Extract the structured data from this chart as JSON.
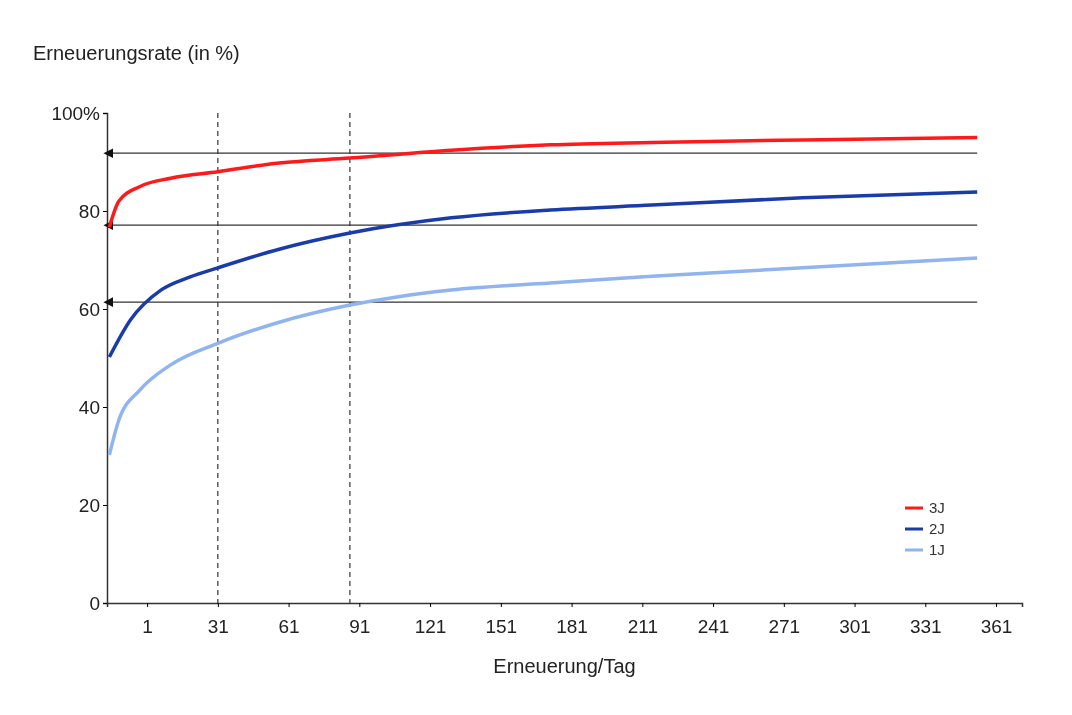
{
  "chart_data": {
    "type": "line",
    "ylabel": "Erneuerungsrate (in %)",
    "xlabel": "Erneuerung/Tag",
    "xlim": [
      -16,
      372
    ],
    "xticks": [
      1,
      31,
      61,
      91,
      121,
      151,
      181,
      211,
      241,
      271,
      301,
      331,
      361
    ],
    "ylim": [
      0,
      100
    ],
    "yticks": [
      0,
      20,
      40,
      60,
      80,
      {
        "value": 100,
        "label": "100%"
      }
    ],
    "grid": false,
    "legend": "bottom right",
    "marker": "none",
    "line_style": "solid",
    "series": [
      {
        "name": "3J",
        "color": "#ff1a1a",
        "x": [
          -15,
          -11,
          -2,
          11,
          31,
          57,
          87,
          130,
          172,
          215,
          279,
          353
        ],
        "values": [
          76.7,
          82,
          85,
          86.7,
          88,
          89.8,
          90.8,
          92.4,
          93.5,
          94,
          94.5,
          95
        ]
      },
      {
        "name": "2J",
        "color": "#1a3caa",
        "x": [
          -15,
          -6,
          7,
          19,
          31,
          57,
          87,
          130,
          172,
          215,
          279,
          353
        ],
        "values": [
          50.2,
          57.8,
          63.9,
          66.5,
          68.4,
          72.2,
          75.5,
          78.6,
          80.2,
          81.2,
          82.7,
          83.9
        ]
      },
      {
        "name": "1J",
        "color": "#8fb4f0",
        "x": [
          -15,
          -11,
          -2,
          11,
          31,
          57,
          87,
          130,
          172,
          215,
          279,
          353
        ],
        "values": [
          30.2,
          37.3,
          43.5,
          48.6,
          53,
          57.3,
          60.8,
          63.9,
          65.3,
          66.7,
          68.4,
          70.4
        ]
      }
    ],
    "ref_lines": [
      {
        "axis": "x",
        "value": 31,
        "color": "#333333",
        "line_style": "dashed"
      },
      {
        "axis": "x",
        "value": 87,
        "color": "#333333",
        "line_style": "dashed"
      },
      {
        "axis": "y",
        "value": 91.8,
        "color": "#333333",
        "line_style": "solid"
      },
      {
        "axis": "y",
        "value": 77.1,
        "color": "#333333",
        "line_style": "solid"
      },
      {
        "axis": "y",
        "value": 61.4,
        "color": "#333333",
        "line_style": "solid"
      }
    ]
  }
}
